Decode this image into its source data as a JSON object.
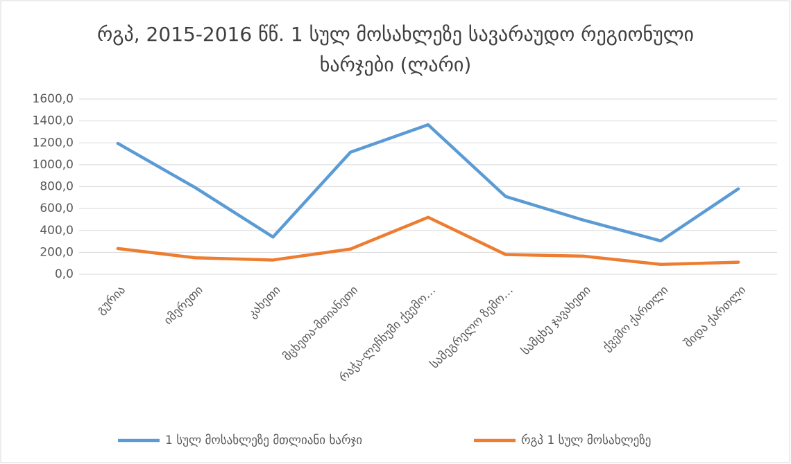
{
  "chart_data": {
    "type": "line",
    "title": "რგპ, 2015-2016 წწ. 1 სულ მოსახლეზე სავარაუდო რეგიონული ხარჯები  (ლარი)",
    "categories": [
      "გურია",
      "იმერეთი",
      "კახეთი",
      "მცხეთა-მთიანეთი",
      "რაჭა-ლეჩხუმი ქვემო…",
      "სამეგრელო ზემო…",
      "სამცხე ჯავახეთი",
      "ქვემო ქართლი",
      "შიდა ქართლი"
    ],
    "series": [
      {
        "name": "1 სულ მოსახლეზე მთლიანი ხარჯი",
        "color": "#5b9bd5",
        "values": [
          1195,
          790,
          340,
          1115,
          1365,
          710,
          495,
          305,
          780
        ]
      },
      {
        "name": "რგპ 1 სულ მოსახლეზე",
        "color": "#ed7d31",
        "values": [
          235,
          150,
          130,
          230,
          520,
          180,
          165,
          90,
          110
        ]
      }
    ],
    "ylim": [
      0,
      1600
    ],
    "yticks": [
      {
        "value": 0,
        "label": "0,0"
      },
      {
        "value": 200,
        "label": "200,0"
      },
      {
        "value": 400,
        "label": "400,0"
      },
      {
        "value": 600,
        "label": "600,0"
      },
      {
        "value": 800,
        "label": "800,0"
      },
      {
        "value": 1000,
        "label": "1000,0"
      },
      {
        "value": 1200,
        "label": "1200,0"
      },
      {
        "value": 1400,
        "label": "1400,0"
      },
      {
        "value": 1600,
        "label": "1600,0"
      }
    ],
    "grid": true,
    "legend": "bottom"
  }
}
